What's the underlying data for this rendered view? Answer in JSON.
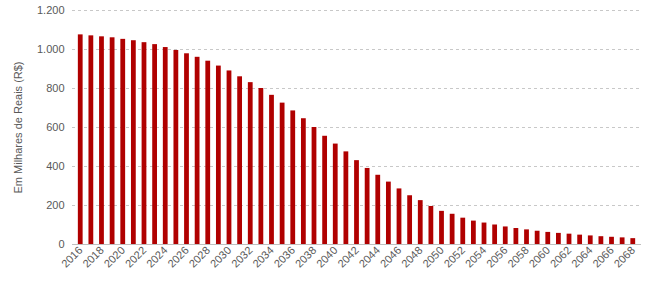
{
  "chart_data": {
    "type": "bar",
    "y_label": "Em Milhares de Reais (R$)",
    "categories": [
      "2016",
      null,
      "2018",
      null,
      "2020",
      null,
      "2022",
      null,
      "2024",
      null,
      "2026",
      null,
      "2028",
      null,
      "2030",
      null,
      "2032",
      null,
      "2034",
      null,
      "2036",
      null,
      "2038",
      null,
      "2040",
      null,
      "2042",
      null,
      "2044",
      null,
      "2046",
      null,
      "2048",
      null,
      "2050",
      null,
      "2052",
      null,
      "2054",
      null,
      "2056",
      null,
      "2058",
      null,
      "2060",
      null,
      "2062",
      null,
      "2064",
      null,
      "2066",
      null,
      "2068"
    ],
    "values": [
      1075,
      1070,
      1065,
      1060,
      1052,
      1045,
      1035,
      1025,
      1010,
      995,
      978,
      960,
      940,
      915,
      890,
      860,
      830,
      800,
      765,
      725,
      685,
      645,
      600,
      555,
      515,
      475,
      430,
      390,
      355,
      320,
      285,
      250,
      225,
      195,
      170,
      155,
      135,
      120,
      110,
      100,
      90,
      82,
      75,
      68,
      62,
      57,
      53,
      48,
      44,
      40,
      37,
      34,
      30
    ],
    "color": "#b00000",
    "ylim": [
      0,
      1200
    ],
    "yticks": [
      0,
      200,
      400,
      600,
      800,
      {
        "value": 1000,
        "label": "1.000"
      },
      {
        "value": 1200,
        "label": "1.200"
      }
    ],
    "grid": true
  }
}
